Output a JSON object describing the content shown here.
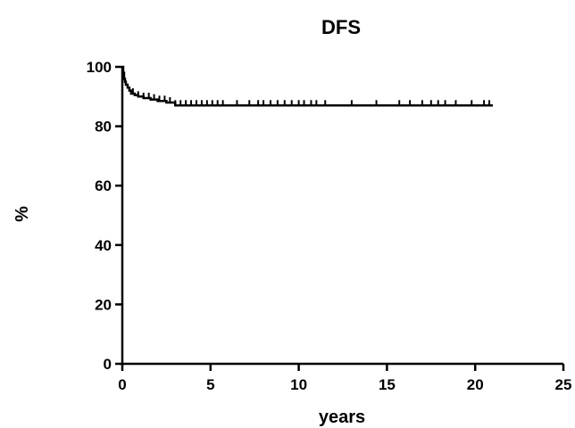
{
  "chart_data": {
    "type": "line",
    "step": true,
    "title": "DFS",
    "xlabel": "years",
    "ylabel": "%",
    "xlim": [
      0,
      25
    ],
    "ylim": [
      0,
      100
    ],
    "xticks": [
      0,
      5,
      10,
      15,
      20,
      25
    ],
    "yticks": [
      0,
      20,
      40,
      60,
      80,
      100
    ],
    "grid": false,
    "legend": "none",
    "line_color": "#000000",
    "series": [
      {
        "x": [
          0,
          0.05,
          0.1,
          0.15,
          0.2,
          0.3,
          0.4,
          0.5,
          0.7,
          0.9,
          1.2,
          1.6,
          2.0,
          2.5,
          3.0,
          21.0
        ],
        "y": [
          100,
          98,
          96,
          95,
          94,
          93,
          92,
          91,
          90.5,
          90,
          89.5,
          89,
          88.5,
          88,
          87,
          87
        ],
        "censored_x": [
          0.6,
          0.9,
          1.2,
          1.5,
          1.8,
          2.1,
          2.4,
          2.7,
          3.0,
          3.3,
          3.6,
          3.9,
          4.2,
          4.5,
          4.8,
          5.1,
          5.4,
          5.7,
          6.5,
          7.2,
          7.7,
          8.0,
          8.4,
          8.8,
          9.2,
          9.6,
          10.0,
          10.3,
          10.7,
          11.0,
          11.5,
          13.0,
          14.4,
          15.7,
          16.3,
          17.0,
          17.5,
          17.9,
          18.3,
          18.9,
          19.8,
          20.5,
          20.8
        ]
      }
    ]
  }
}
